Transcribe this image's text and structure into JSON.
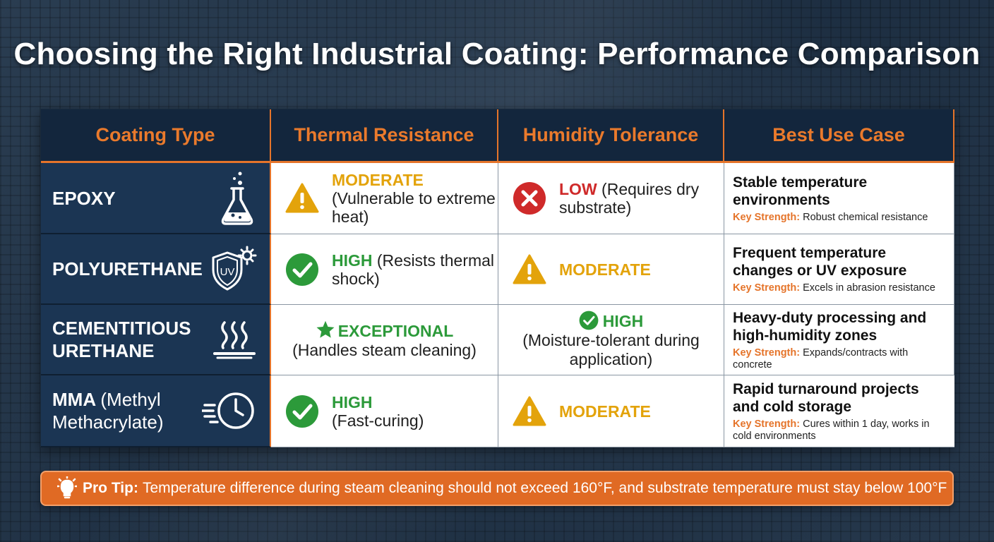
{
  "title": "Choosing the Right Industrial Coating: Performance Comparison",
  "colors": {
    "accent_orange": "#e5742a",
    "header_navy": "#13263d",
    "row_navy": "#1b3553",
    "moderate_amber": "#e3a30b",
    "high_green": "#2c9a3a",
    "low_red": "#cf2a2a"
  },
  "headers": [
    "Coating Type",
    "Thermal Resistance",
    "Humidity Tolerance",
    "Best Use Case"
  ],
  "rows": [
    {
      "type": "EPOXY",
      "type_icon": "flask-icon",
      "thermal": {
        "level": "MODERATE",
        "detail": "(Vulnerable to extreme heat)",
        "icon": "warning-icon"
      },
      "humidity": {
        "level": "LOW",
        "detail": "(Requires dry substrate)",
        "icon": "x-circle-icon"
      },
      "use_case": "Stable temperature environments",
      "strength_label": "Key Strength:",
      "strength": "Robust chemical resistance"
    },
    {
      "type": "POLYURETHANE",
      "type_icon": "uv-shield-icon",
      "thermal": {
        "level": "HIGH",
        "detail": "(Resists thermal shock)",
        "icon": "check-circle-icon"
      },
      "humidity": {
        "level": "MODERATE",
        "detail": "",
        "icon": "warning-icon"
      },
      "use_case": "Frequent temperature changes or UV exposure",
      "strength_label": "Key Strength:",
      "strength": "Excels in abrasion resistance"
    },
    {
      "type": "CEMENTITIOUS URETHANE",
      "type_icon": "heat-surface-icon",
      "thermal": {
        "level": "EXCEPTIONAL",
        "detail": "(Handles steam cleaning)",
        "icon": "star-icon"
      },
      "humidity": {
        "level": "HIGH",
        "detail": "(Moisture-tolerant during application)",
        "icon": "check-circle-icon"
      },
      "use_case": "Heavy-duty processing and high-humidity zones",
      "strength_label": "Key Strength:",
      "strength": "Expands/contracts with concrete"
    },
    {
      "type": "MMA",
      "type_suffix": "(Methyl Methacrylate)",
      "type_icon": "fast-clock-icon",
      "thermal": {
        "level": "HIGH",
        "detail": "(Fast-curing)",
        "icon": "check-circle-icon"
      },
      "humidity": {
        "level": "MODERATE",
        "detail": "",
        "icon": "warning-icon"
      },
      "use_case": "Rapid turnaround projects and cold storage",
      "strength_label": "Key Strength:",
      "strength": "Cures within 1 day, works in cold environments"
    }
  ],
  "tip": {
    "icon": "lightbulb-icon",
    "label": "Pro Tip:",
    "text": "Temperature difference during steam cleaning should not exceed 160°F, and substrate temperature must stay below 100°F"
  }
}
